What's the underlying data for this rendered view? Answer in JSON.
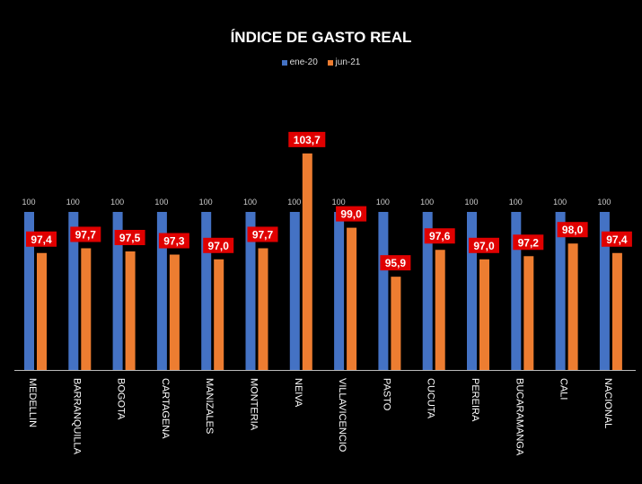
{
  "chart_data": {
    "type": "bar",
    "title": "ÍNDICE DE GASTO REAL",
    "categories": [
      "MEDELLIN",
      "BARRANQUILLA",
      "BOGOTA",
      "CARTAGENA",
      "MANIZALES",
      "MONTERIA",
      "NEIVA",
      "VILLAVICENCIO",
      "PASTO",
      "CUCUTA",
      "PEREIRA",
      "BUCARAMANGA",
      "CALI",
      "NACIONAL"
    ],
    "series": [
      {
        "name": "ene-20",
        "color": "#4472C4",
        "values": [
          100,
          100,
          100,
          100,
          100,
          100,
          100,
          100,
          100,
          100,
          100,
          100,
          100,
          100
        ],
        "labels": [
          "100",
          "100",
          "100",
          "100",
          "100",
          "100",
          "100",
          "100",
          "100",
          "100",
          "100",
          "100",
          "100",
          "100"
        ]
      },
      {
        "name": "jun-21",
        "color": "#ED7D31",
        "values": [
          97.4,
          97.7,
          97.5,
          97.3,
          97.0,
          97.7,
          103.7,
          99.0,
          95.9,
          97.6,
          97.0,
          97.2,
          98.0,
          97.4
        ],
        "labels": [
          "97,4",
          "97,7",
          "97,5",
          "97,3",
          "97,0",
          "97,7",
          "103,7",
          "99,0",
          "95,9",
          "97,6",
          "97,0",
          "97,2",
          "98,0",
          "97,4"
        ]
      }
    ],
    "ylim": [
      90,
      105
    ],
    "grid": false,
    "legend": "top",
    "label_box_color": "#E00000"
  }
}
